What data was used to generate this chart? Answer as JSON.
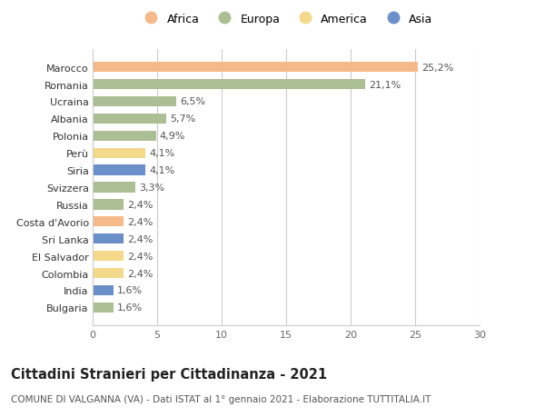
{
  "countries": [
    "Bulgaria",
    "India",
    "Colombia",
    "El Salvador",
    "Sri Lanka",
    "Costa d'Avorio",
    "Russia",
    "Svizzera",
    "Siria",
    "Perù",
    "Polonia",
    "Albania",
    "Ucraina",
    "Romania",
    "Marocco"
  ],
  "values": [
    1.6,
    1.6,
    2.4,
    2.4,
    2.4,
    2.4,
    2.4,
    3.3,
    4.1,
    4.1,
    4.9,
    5.7,
    6.5,
    21.1,
    25.2
  ],
  "labels": [
    "1,6%",
    "1,6%",
    "2,4%",
    "2,4%",
    "2,4%",
    "2,4%",
    "2,4%",
    "3,3%",
    "4,1%",
    "4,1%",
    "4,9%",
    "5,7%",
    "6,5%",
    "21,1%",
    "25,2%"
  ],
  "continents": [
    "Europa",
    "Asia",
    "America",
    "America",
    "Asia",
    "Africa",
    "Europa",
    "Europa",
    "Asia",
    "America",
    "Europa",
    "Europa",
    "Europa",
    "Europa",
    "Africa"
  ],
  "continent_colors": {
    "Africa": "#F5B98A",
    "Europa": "#ABBE94",
    "America": "#F5D98A",
    "Asia": "#6B8FC9"
  },
  "legend_order": [
    "Africa",
    "Europa",
    "America",
    "Asia"
  ],
  "xlim": [
    0,
    30
  ],
  "xticks": [
    0,
    5,
    10,
    15,
    20,
    25,
    30
  ],
  "title": "Cittadini Stranieri per Cittadinanza - 2021",
  "subtitle": "COMUNE DI VALGANNA (VA) - Dati ISTAT al 1° gennaio 2021 - Elaborazione TUTTITALIA.IT",
  "background_color": "#ffffff",
  "grid_color": "#cccccc",
  "bar_height": 0.6,
  "label_fontsize": 8,
  "tick_fontsize": 8,
  "title_fontsize": 10.5,
  "subtitle_fontsize": 7.5,
  "legend_fontsize": 9
}
